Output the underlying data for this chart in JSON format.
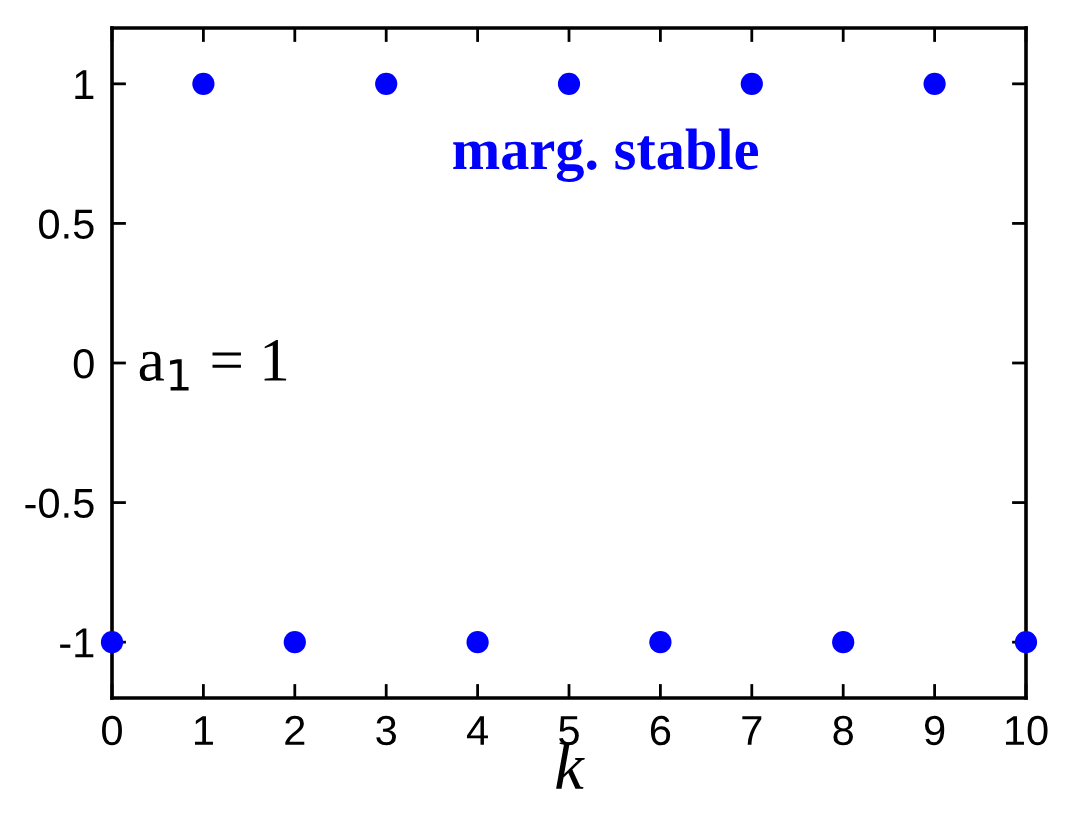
{
  "chart_data": {
    "type": "scatter",
    "xlabel": "k",
    "annotations": [
      "marg. stable",
      "a$_{1}$ = 1"
    ],
    "x": [
      0,
      1,
      2,
      3,
      4,
      5,
      6,
      7,
      8,
      9,
      10
    ],
    "series": [
      {
        "color": "#0000ff",
        "values": [
          -1,
          1,
          -1,
          1,
          -1,
          1,
          -1,
          1,
          -1,
          1,
          -1
        ]
      }
    ],
    "marker": "circle",
    "xlim": [
      0,
      10
    ],
    "ylim": [
      -1.2,
      1.2
    ],
    "xticks": [
      0,
      1,
      2,
      3,
      4,
      5,
      6,
      7,
      8,
      9,
      10
    ],
    "yticks": [
      -1,
      -0.5,
      0,
      0.5,
      1
    ],
    "grid": false
  }
}
